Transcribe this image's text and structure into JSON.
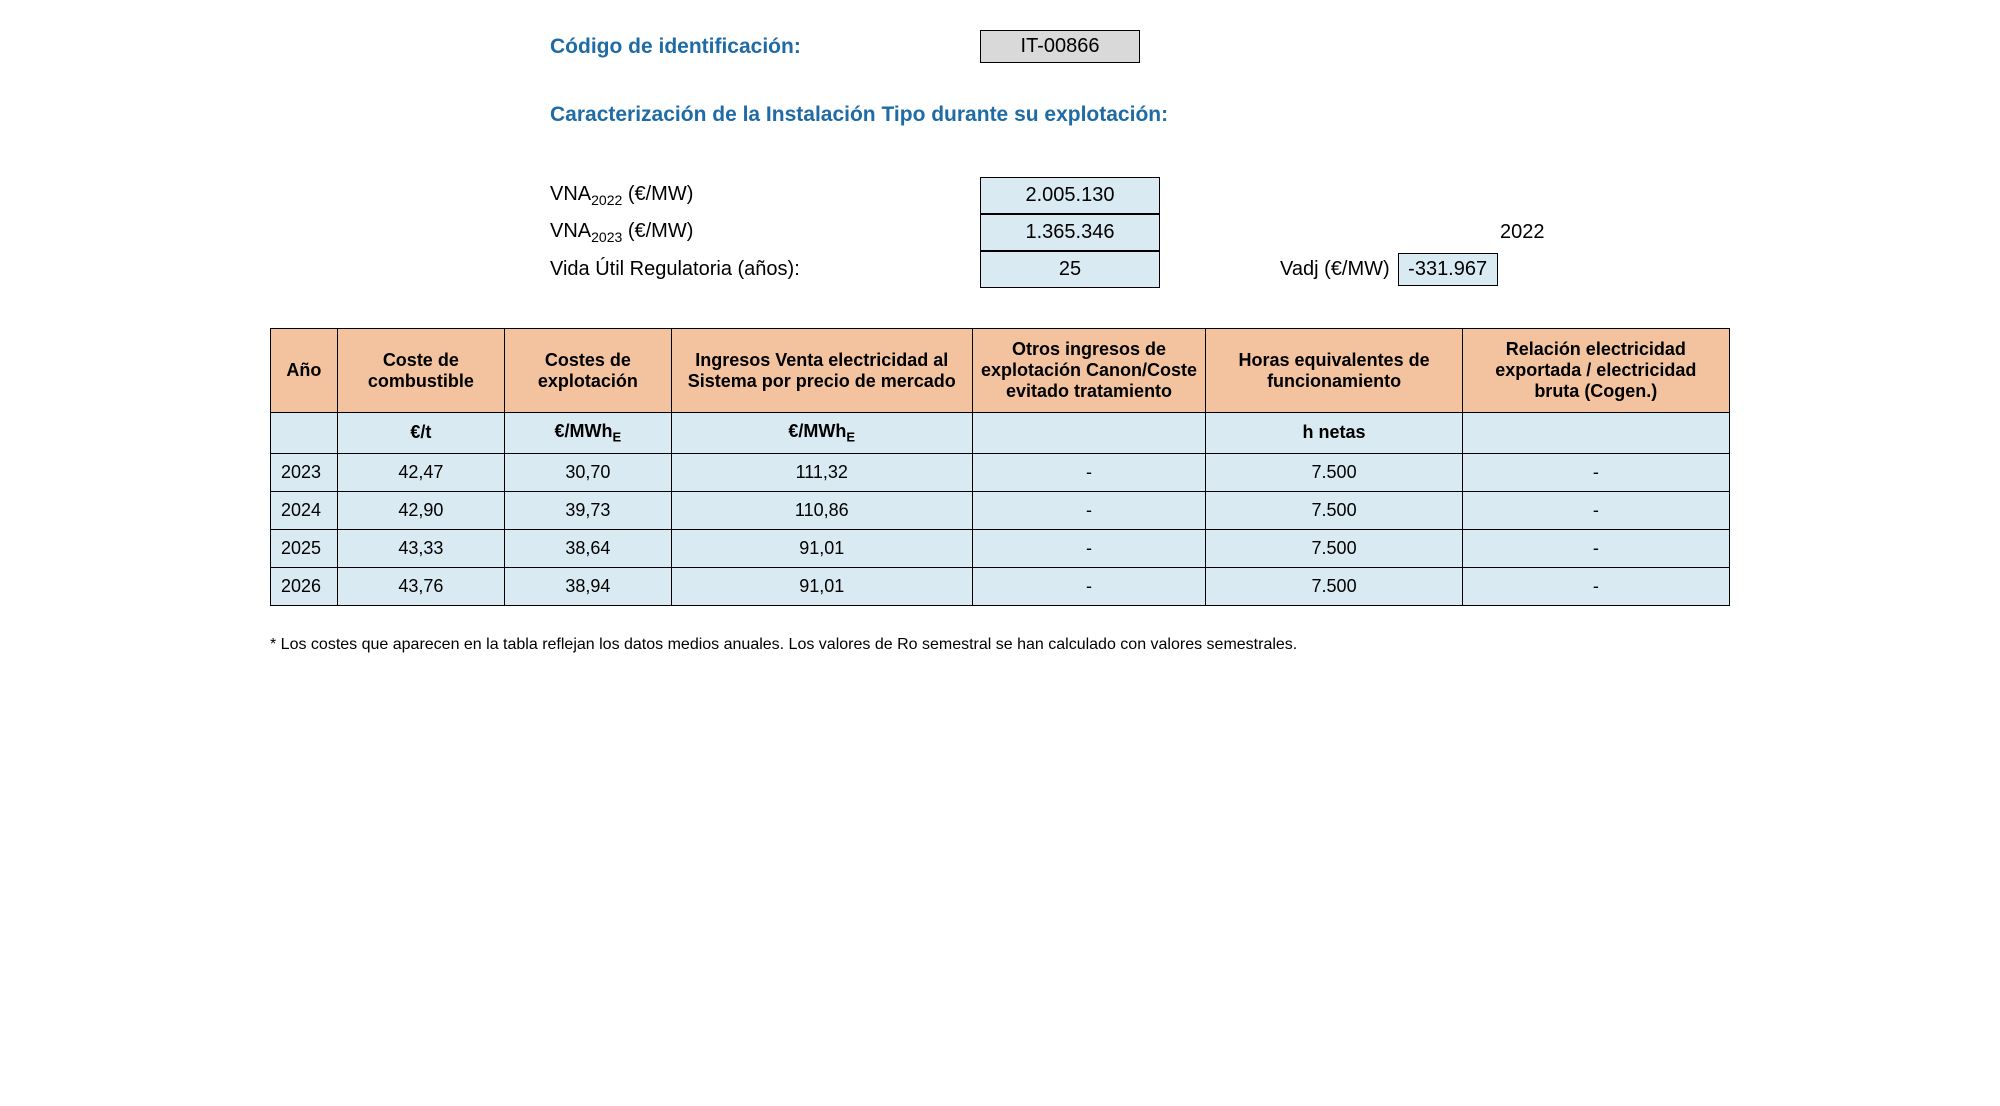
{
  "header": {
    "id_label": "Código de identificación:",
    "id_value": "IT-00866",
    "section_title": "Caracterización de la Instalación Tipo durante su explotación:"
  },
  "params": {
    "vna_2022_label_pre": "VNA",
    "vna_2022_sub": "2022",
    "vna_2022_label_post": " (€/MW)",
    "vna_2022_value": "2.005.130",
    "vna_2023_label_pre": "VNA",
    "vna_2023_sub": "2023",
    "vna_2023_label_post": " (€/MW)",
    "vna_2023_value": "1.365.346",
    "vida_util_label": "Vida Útil Regulatoria (años):",
    "vida_util_value": "25",
    "vadj_year": "2022",
    "vadj_label": "Vadj (€/MW)",
    "vadj_value": "-331.967"
  },
  "table": {
    "headers": {
      "ano": "Año",
      "coste_comb": "Coste de combustible",
      "costes_expl": "Costes de explotación",
      "ingresos": "Ingresos Venta electricidad al Sistema por precio de mercado",
      "otros": "Otros ingresos de explotación Canon/Coste evitado tratamiento",
      "horas": "Horas equivalentes de funcionamiento",
      "relacion": "Relación electricidad exportada / electricidad bruta (Cogen.)"
    },
    "units": {
      "ano": "",
      "coste_comb": "€/t",
      "costes_expl_pre": "€/MWh",
      "costes_expl_sub": "E",
      "ingresos_pre": "€/MWh",
      "ingresos_sub": "E",
      "otros": "",
      "horas": "h netas",
      "relacion": ""
    },
    "rows": [
      {
        "ano": "2023",
        "coste_comb": "42,47",
        "costes_expl": "30,70",
        "ingresos": "111,32",
        "otros": "-",
        "horas": "7.500",
        "relacion": "-"
      },
      {
        "ano": "2024",
        "coste_comb": "42,90",
        "costes_expl": "39,73",
        "ingresos": "110,86",
        "otros": "-",
        "horas": "7.500",
        "relacion": "-"
      },
      {
        "ano": "2025",
        "coste_comb": "43,33",
        "costes_expl": "38,64",
        "ingresos": "91,01",
        "otros": "-",
        "horas": "7.500",
        "relacion": "-"
      },
      {
        "ano": "2026",
        "coste_comb": "43,76",
        "costes_expl": "38,94",
        "ingresos": "91,01",
        "otros": "-",
        "horas": "7.500",
        "relacion": "-"
      }
    ]
  },
  "footnote": "* Los costes que aparecen en la tabla reflejan los datos medios anuales. Los valores de Ro semestral se han calculado con valores semestrales.",
  "colors": {
    "header_bg": "#f2c39e",
    "cell_bg": "#d9eaf2",
    "id_box_bg": "#d9d9d9",
    "title_color": "#1f6ba5",
    "border": "#000000"
  }
}
